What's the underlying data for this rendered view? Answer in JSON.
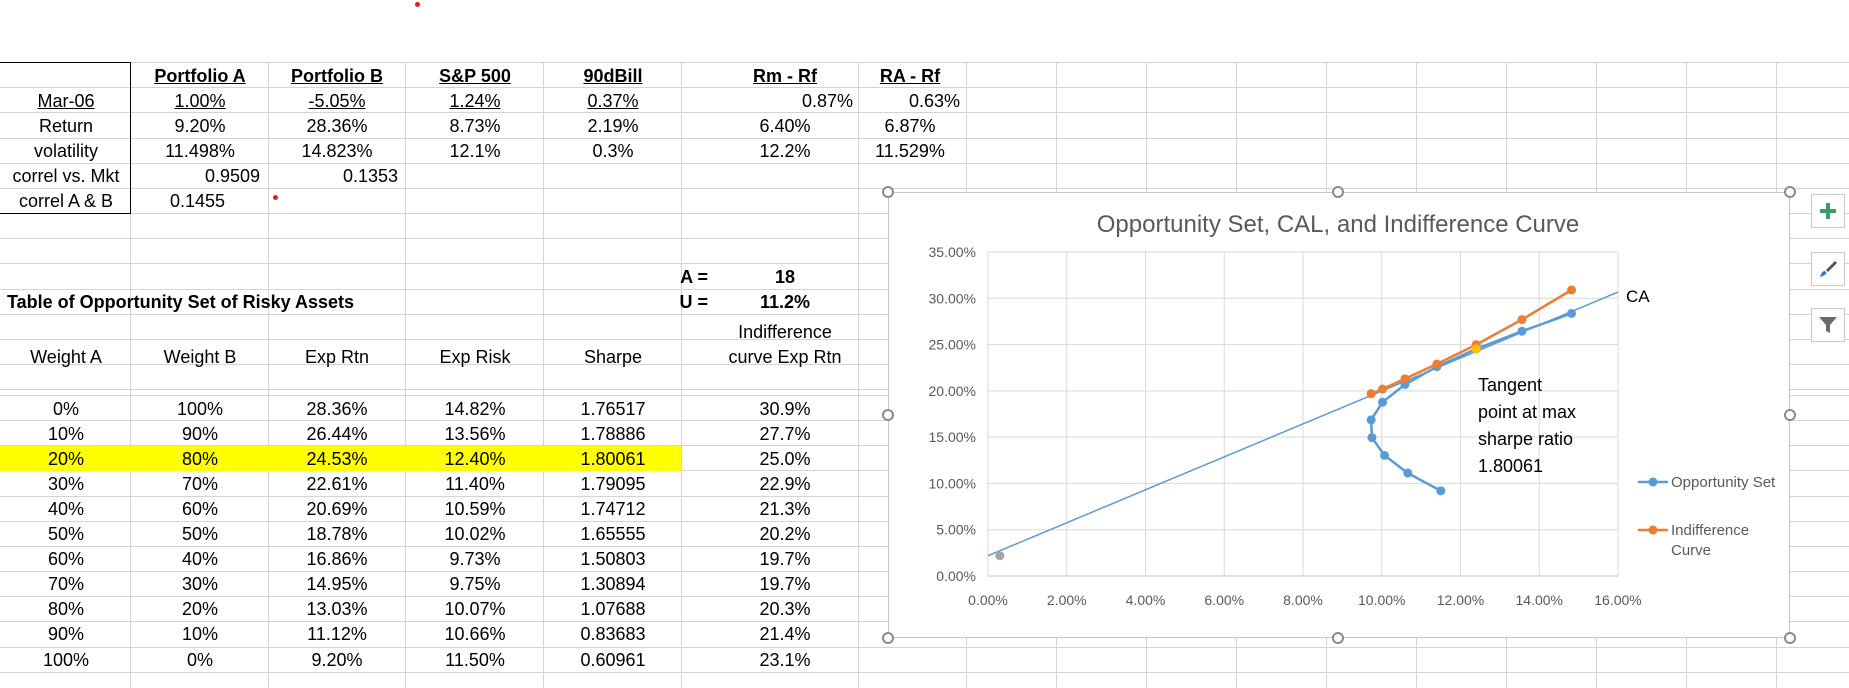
{
  "header": {
    "cols": [
      "Portfolio A",
      "Portfolio B",
      "S&P 500",
      "90dBill",
      "Rm - Rf",
      "RA - Rf"
    ]
  },
  "rows": {
    "mar06": {
      "label": "Mar-06",
      "pa": "1.00%",
      "pb": "-5.05%",
      "sp": "1.24%",
      "tb": "0.37%",
      "rmrf": "0.87%",
      "rarf": "0.63%"
    },
    "ret": {
      "label": "Return",
      "pa": "9.20%",
      "pb": "28.36%",
      "sp": "8.73%",
      "tb": "2.19%",
      "rmrf": "6.40%",
      "rarf": "6.87%"
    },
    "vol": {
      "label": "volatility",
      "pa": "11.498%",
      "pb": "14.823%",
      "sp": "12.1%",
      "tb": "0.3%",
      "rmrf": "12.2%",
      "rarf": "11.529%"
    },
    "corr_mkt": {
      "label": "correl vs. Mkt",
      "pa": "0.9509",
      "pb": "0.1353"
    },
    "corr_ab": {
      "label": "correl A & B",
      "pa": "0.1455"
    }
  },
  "params": {
    "a_label": "A =",
    "a_value": "18",
    "u_label": "U =",
    "u_value": "11.2%"
  },
  "table": {
    "title": "Table of Opportunity Set of Risky Assets",
    "headers": [
      "Weight A",
      "Weight B",
      "Exp Rtn",
      "Exp Risk",
      "Sharpe"
    ],
    "indiff_header_line1": "Indifference",
    "indiff_header_line2": "curve Exp Rtn",
    "rows": [
      [
        "0%",
        "100%",
        "28.36%",
        "14.82%",
        "1.76517",
        "30.9%"
      ],
      [
        "10%",
        "90%",
        "26.44%",
        "13.56%",
        "1.78886",
        "27.7%"
      ],
      [
        "20%",
        "80%",
        "24.53%",
        "12.40%",
        "1.80061",
        "25.0%"
      ],
      [
        "30%",
        "70%",
        "22.61%",
        "11.40%",
        "1.79095",
        "22.9%"
      ],
      [
        "40%",
        "60%",
        "20.69%",
        "10.59%",
        "1.74712",
        "21.3%"
      ],
      [
        "50%",
        "50%",
        "18.78%",
        "10.02%",
        "1.65555",
        "20.2%"
      ],
      [
        "60%",
        "40%",
        "16.86%",
        "9.73%",
        "1.50803",
        "19.7%"
      ],
      [
        "70%",
        "30%",
        "14.95%",
        "9.75%",
        "1.30894",
        "19.7%"
      ],
      [
        "80%",
        "20%",
        "13.03%",
        "10.07%",
        "1.07688",
        "20.3%"
      ],
      [
        "90%",
        "10%",
        "11.12%",
        "10.66%",
        "0.83683",
        "21.4%"
      ],
      [
        "100%",
        "0%",
        "9.20%",
        "11.50%",
        "0.60961",
        "23.1%"
      ]
    ],
    "highlight_row": 2,
    "highlight_color": "#ffff00"
  },
  "chart_data": {
    "type": "scatter",
    "title": "Opportunity Set, CAL, and Indifference Curve",
    "xlim": [
      0,
      0.16
    ],
    "ylim": [
      0,
      0.35
    ],
    "x_ticks": [
      "0.00%",
      "2.00%",
      "4.00%",
      "6.00%",
      "8.00%",
      "10.00%",
      "12.00%",
      "14.00%",
      "16.00%"
    ],
    "y_ticks": [
      "0.00%",
      "5.00%",
      "10.00%",
      "15.00%",
      "20.00%",
      "25.00%",
      "30.00%",
      "35.00%"
    ],
    "grid": true,
    "legend_position": "right",
    "series": [
      {
        "name": "Opportunity Set",
        "color": "#5b9bd5",
        "x": [
          0.1482,
          0.1356,
          0.124,
          0.114,
          0.1059,
          0.1002,
          0.0973,
          0.0975,
          0.1007,
          0.1066,
          0.115
        ],
        "y": [
          0.2836,
          0.2644,
          0.2453,
          0.2261,
          0.2069,
          0.1878,
          0.1686,
          0.1495,
          0.1303,
          0.1112,
          0.092
        ]
      },
      {
        "name": "Indifference Curve",
        "color": "#ed7d31",
        "x": [
          0.1482,
          0.1356,
          0.124,
          0.114,
          0.1059,
          0.1002,
          0.0973,
          0.0975,
          0.1007,
          0.1066,
          0.115
        ],
        "y": [
          0.309,
          0.277,
          0.25,
          0.229,
          0.213,
          0.202,
          0.197,
          0.197,
          0.203,
          0.214,
          0.231
        ]
      }
    ],
    "cal_line": {
      "color": "#5b9bd5",
      "x": [
        0.0,
        0.16
      ],
      "y": [
        0.0219,
        0.3067
      ],
      "label": "CA"
    },
    "risk_free_point": {
      "x": 0.003,
      "y": 0.0219,
      "color": "#a5a5a5"
    },
    "tangent_point": {
      "x": 0.124,
      "y": 0.2453,
      "color": "#ffc000"
    },
    "annotation": [
      "Tangent",
      "point at max",
      "sharpe ratio",
      "1.80061"
    ]
  }
}
